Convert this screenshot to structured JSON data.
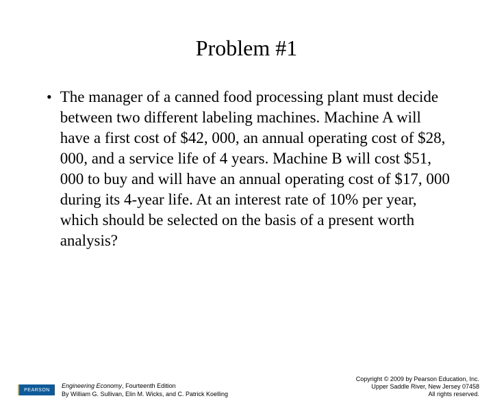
{
  "title": "Problem #1",
  "bullet": "•",
  "body": "The manager of a canned food processing plant must decide between two different labeling machines. Machine A will have a first cost of $42, 000, an annual operating cost of $28, 000, and a service life of 4 years. Machine B will cost $51, 000 to buy and will have an annual operating cost of $17, 000 during its 4-year life. At an interest rate of 10% per year, which should be selected on the basis of a present worth analysis?",
  "footer": {
    "logo_text": "PEARSON",
    "book_title": "Engineering Economy",
    "edition": ", Fourteenth Edition",
    "authors": "By William G. Sullivan, Elin M. Wicks, and C. Patrick Koelling",
    "copyright_line1": "Copyright © 2009 by Pearson Education, Inc.",
    "copyright_line2": "Upper Saddle River, New Jersey 07458",
    "copyright_line3": "All rights reserved."
  }
}
